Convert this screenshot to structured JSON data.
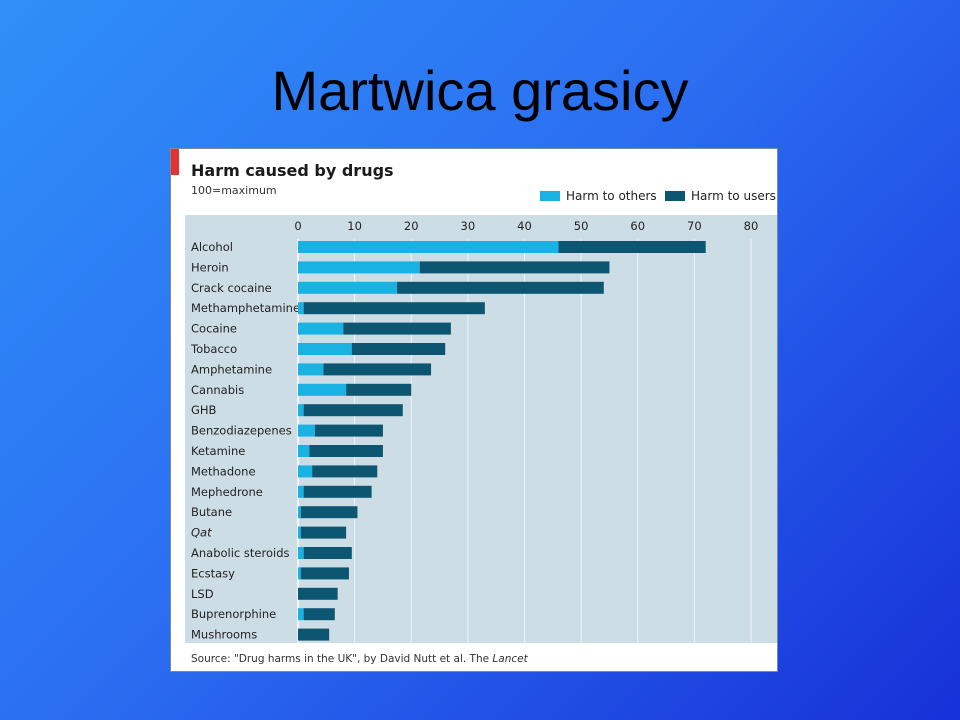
{
  "slide": {
    "title": "Martwica grasicy"
  },
  "colors": {
    "harm_to_others": "#1ab1e3",
    "harm_to_users": "#0d5672",
    "plot_bg": "#cddde6",
    "gridline": "#eef4f7"
  },
  "chart_data": {
    "type": "bar",
    "orientation": "horizontal",
    "stacked": true,
    "title": "Harm caused by drugs",
    "subtitle": "100=maximum",
    "xlim": [
      0,
      80
    ],
    "x_ticks": [
      0,
      10,
      20,
      30,
      40,
      50,
      60,
      70,
      80
    ],
    "categories": [
      "Alcohol",
      "Heroin",
      "Crack cocaine",
      "Methamphetamine",
      "Cocaine",
      "Tobacco",
      "Amphetamine",
      "Cannabis",
      "GHB",
      "Benzodiazepenes",
      "Ketamine",
      "Methadone",
      "Mephedrone",
      "Butane",
      "Qat",
      "Anabolic steroids",
      "Ecstasy",
      "LSD",
      "Buprenorphine",
      "Mushrooms"
    ],
    "italic_categories": [
      "Qat"
    ],
    "series": [
      {
        "name": "Harm to others",
        "values": [
          46,
          21.5,
          17.5,
          1,
          8,
          9.5,
          4.5,
          8.5,
          1,
          3,
          2,
          2.5,
          1,
          0.5,
          0.5,
          1,
          0.5,
          0,
          1,
          0
        ]
      },
      {
        "name": "Harm to users",
        "values": [
          26,
          33.5,
          36.5,
          32,
          19,
          16.5,
          19,
          11.5,
          17.5,
          12,
          13,
          11.5,
          12,
          10,
          8,
          8.5,
          8.5,
          7,
          5.5,
          5.5
        ]
      }
    ],
    "legend": "top-right",
    "source": {
      "prefix": "Source: \"Drug harms in the UK\", by David Nutt et al. The ",
      "journal": "Lancet"
    }
  }
}
